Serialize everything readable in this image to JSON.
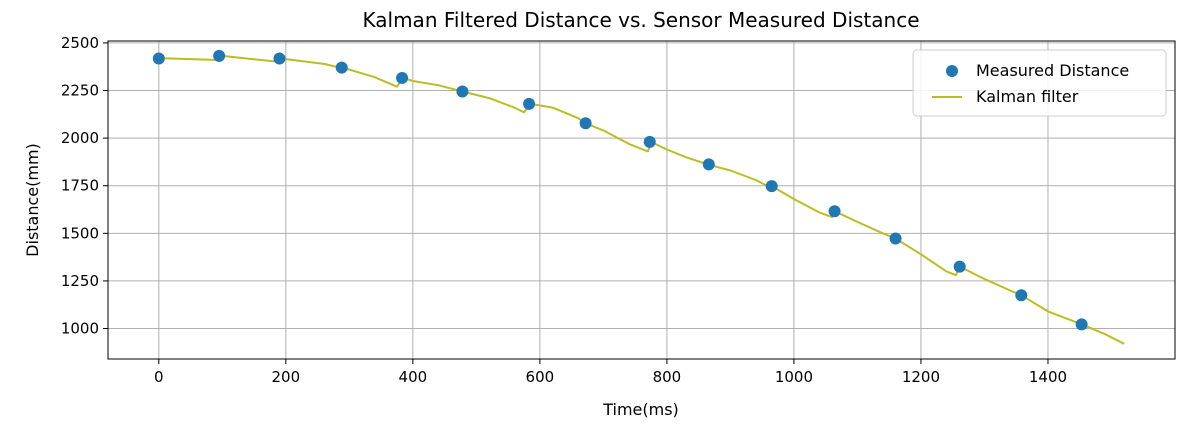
{
  "chart_data": {
    "type": "line",
    "title": "Kalman Filtered Distance vs. Sensor Measured Distance",
    "xlabel": "Time(ms)",
    "ylabel": "Distance(mm)",
    "xlim": [
      -80,
      1600
    ],
    "ylim": [
      840,
      2510
    ],
    "x_ticks": [
      0,
      200,
      400,
      600,
      800,
      1000,
      1200,
      1400
    ],
    "y_ticks": [
      1000,
      1250,
      1500,
      1750,
      2000,
      2250,
      2500
    ],
    "grid": true,
    "legend_position": "top-right",
    "series": [
      {
        "name": "Measured Distance",
        "type": "scatter",
        "color": "#1f77b4",
        "x": [
          0,
          95,
          190,
          288,
          383,
          478,
          583,
          672,
          773,
          866,
          965,
          1064,
          1160,
          1261,
          1358,
          1453
        ],
        "y": [
          2418,
          2432,
          2418,
          2370,
          2316,
          2245,
          2180,
          2078,
          1980,
          1862,
          1748,
          1616,
          1473,
          1325,
          1175,
          1022
        ]
      },
      {
        "name": "Kalman filter",
        "type": "line",
        "color": "#bcbd22",
        "x": [
          0,
          95,
          100,
          190,
          195,
          260,
          288,
          300,
          340,
          375,
          385,
          400,
          440,
          478,
          520,
          560,
          575,
          585,
          620,
          660,
          672,
          700,
          740,
          770,
          775,
          800,
          830,
          866,
          900,
          940,
          960,
          965,
          1000,
          1040,
          1060,
          1064,
          1100,
          1140,
          1160,
          1200,
          1240,
          1255,
          1261,
          1300,
          1340,
          1358,
          1400,
          1453,
          1490,
          1520
        ],
        "y": [
          2420,
          2410,
          2432,
          2400,
          2417,
          2390,
          2368,
          2360,
          2320,
          2270,
          2316,
          2300,
          2278,
          2245,
          2210,
          2160,
          2135,
          2180,
          2160,
          2105,
          2078,
          2040,
          1970,
          1930,
          1980,
          1940,
          1900,
          1860,
          1830,
          1780,
          1745,
          1748,
          1680,
          1610,
          1585,
          1616,
          1560,
          1500,
          1473,
          1390,
          1300,
          1280,
          1325,
          1260,
          1200,
          1175,
          1090,
          1022,
          970,
          920
        ]
      }
    ]
  }
}
